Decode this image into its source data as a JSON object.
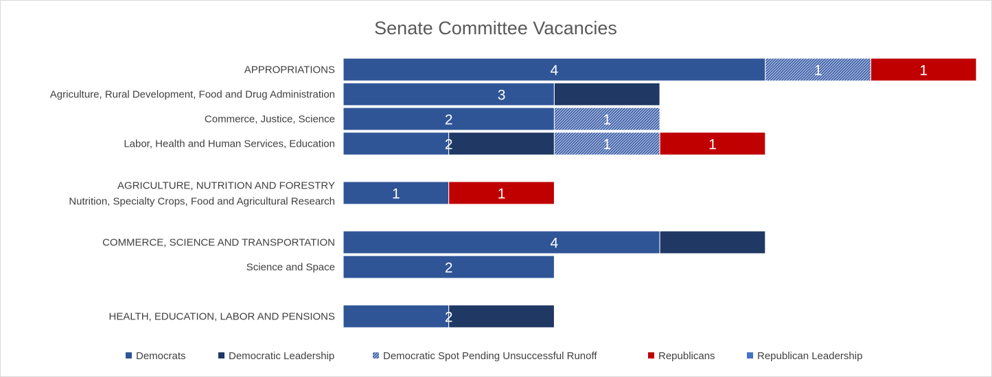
{
  "chart_data": {
    "type": "bar",
    "orientation": "horizontal",
    "stacked": true,
    "title": "Senate Committee Vacancies",
    "xlabel": "",
    "ylabel": "",
    "xlim": [
      0,
      6
    ],
    "grid": false,
    "legend_position": "bottom",
    "colors": {
      "Democrats": "#2f5597",
      "Democratic Leadership": "#1f3864",
      "Democratic Spot Pending Unsuccessful Runoff": "#3b5ea8",
      "Republicans": "#c00000",
      "Republican Leadership": "#4472c4"
    },
    "rows": [
      {
        "labels": [
          "APPROPRIATIONS"
        ],
        "segments": [
          {
            "series": "Democrats",
            "value": 4
          },
          {
            "series": "Democratic Spot Pending Unsuccessful Runoff",
            "value": 1
          },
          {
            "series": "Republicans",
            "value": 1
          }
        ]
      },
      {
        "labels": [
          "Agriculture, Rural Development, Food and Drug Administration"
        ],
        "segments": [
          {
            "series": "Democrats",
            "value": 2
          },
          {
            "series": "Democratic Leadership",
            "value": 1
          }
        ],
        "labels_shown": [
          "3"
        ]
      },
      {
        "labels": [
          "Commerce, Justice, Science"
        ],
        "segments": [
          {
            "series": "Democrats",
            "value": 2
          },
          {
            "series": "Democratic Spot Pending Unsuccessful Runoff",
            "value": 1
          }
        ]
      },
      {
        "labels": [
          "Labor, Health and Human Services, Education"
        ],
        "segments": [
          {
            "series": "Democrats",
            "value": 1
          },
          {
            "series": "Democratic Leadership",
            "value": 1
          },
          {
            "series": "Democratic Spot Pending Unsuccessful Runoff",
            "value": 1
          },
          {
            "series": "Republicans",
            "value": 1
          }
        ],
        "labels_shown": [
          "2",
          "1",
          "1"
        ]
      },
      {
        "gap": true
      },
      {
        "labels": [
          "AGRICULTURE, NUTRITION AND FORESTRY",
          "Nutrition, Specialty Crops, Food and Agricultural Research"
        ],
        "segments": [
          {
            "series": "Democrats",
            "value": 1
          },
          {
            "series": "Republicans",
            "value": 1
          }
        ]
      },
      {
        "gap": true
      },
      {
        "labels": [
          "COMMERCE, SCIENCE AND TRANSPORTATION"
        ],
        "segments": [
          {
            "series": "Democrats",
            "value": 3
          },
          {
            "series": "Democratic Leadership",
            "value": 1
          }
        ],
        "labels_shown": [
          "4"
        ]
      },
      {
        "labels": [
          "Science and Space"
        ],
        "segments": [
          {
            "series": "Democrats",
            "value": 2
          }
        ]
      },
      {
        "gap": true
      },
      {
        "labels": [
          "HEALTH, EDUCATION, LABOR AND PENSIONS"
        ],
        "segments": [
          {
            "series": "Democrats",
            "value": 1
          },
          {
            "series": "Democratic Leadership",
            "value": 1
          }
        ],
        "labels_shown": [
          "2"
        ]
      }
    ],
    "legend": [
      {
        "name": "Democrats",
        "pattern": "solid"
      },
      {
        "name": "Democratic Leadership",
        "pattern": "solid"
      },
      {
        "name": "Democratic Spot Pending Unsuccessful Runoff",
        "pattern": "hatch"
      },
      {
        "name": "Republicans",
        "pattern": "solid"
      },
      {
        "name": "Republican Leadership",
        "pattern": "solid"
      }
    ]
  }
}
